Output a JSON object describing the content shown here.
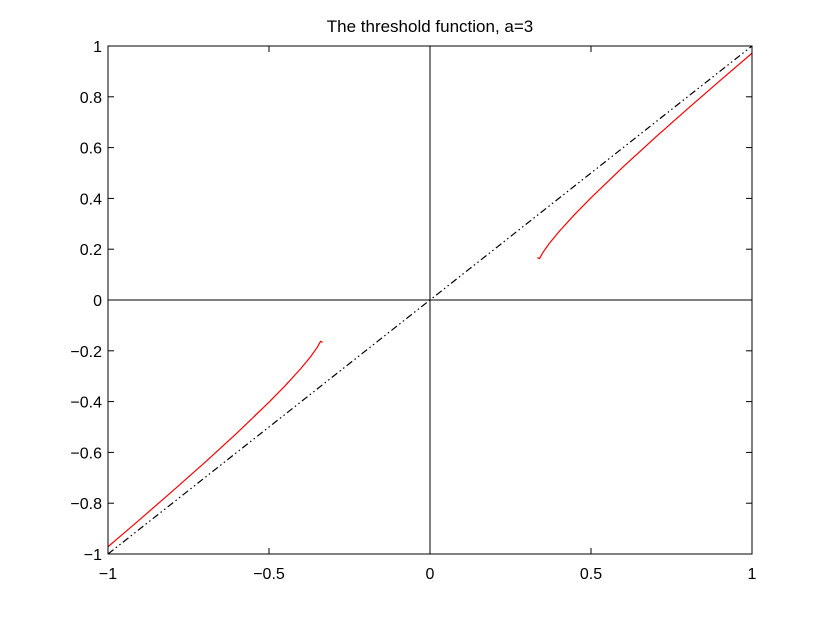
{
  "chart_data": {
    "type": "line",
    "title": "The threshold function, a=3",
    "xlabel": "",
    "ylabel": "",
    "xlim": [
      -1,
      1
    ],
    "ylim": [
      -1,
      1
    ],
    "x_ticks": [
      -1,
      -0.5,
      0,
      0.5,
      1
    ],
    "x_tick_labels": [
      "−1",
      "−0.5",
      "0",
      "0.5",
      "1"
    ],
    "y_ticks": [
      -1,
      -0.8,
      -0.6,
      -0.4,
      -0.2,
      0,
      0.2,
      0.4,
      0.6,
      0.8,
      1
    ],
    "y_tick_labels": [
      "−1",
      "−0.8",
      "−0.6",
      "−0.4",
      "−0.2",
      "0",
      "0.2",
      "0.4",
      "0.6",
      "0.8",
      "1"
    ],
    "grid": false,
    "reference_lines": [
      {
        "axis": "x",
        "value": 0,
        "color": "#000000"
      },
      {
        "axis": "y",
        "value": 0,
        "color": "#000000"
      }
    ],
    "series": [
      {
        "color": "#000000",
        "style": "dash-dot",
        "x": [
          -1,
          1
        ],
        "y": [
          -1,
          1
        ]
      },
      {
        "color": "#ff0000",
        "style": "solid",
        "x": [
          -1,
          -0.9,
          -0.8,
          -0.7,
          -0.6,
          -0.5,
          -0.45,
          -0.4,
          -0.37,
          -0.35,
          -0.34,
          -0.3333
        ],
        "y": [
          -0.9714,
          -0.8629,
          -0.7528,
          -0.6403,
          -0.5243,
          -0.4024,
          -0.3378,
          -0.2683,
          -0.2218,
          -0.1857,
          -0.163,
          -0.1667
        ]
      },
      {
        "color": "#ff0000",
        "style": "solid",
        "x": [
          0.3333,
          0.34,
          0.35,
          0.37,
          0.4,
          0.45,
          0.5,
          0.6,
          0.7,
          0.8,
          0.9,
          1
        ],
        "y": [
          0.1667,
          0.163,
          0.1857,
          0.2218,
          0.2683,
          0.3378,
          0.4024,
          0.5243,
          0.6403,
          0.7528,
          0.8629,
          0.9714
        ]
      }
    ]
  }
}
